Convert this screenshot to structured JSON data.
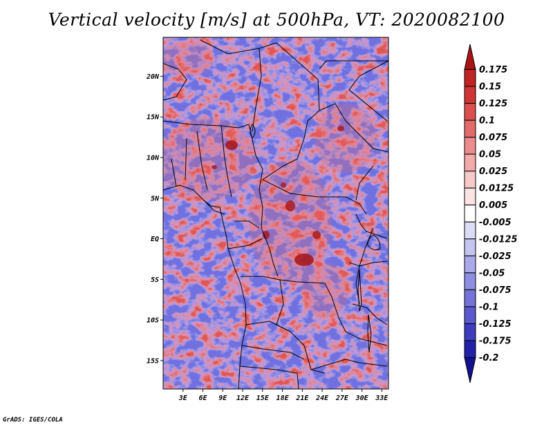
{
  "title": "Vertical velocity [m/s] at 500hPa, VT: 2020082100",
  "credit": "GrADS: IGES/COLA",
  "map": {
    "lat_labels": [
      "20N",
      "15N",
      "10N",
      "5N",
      "EQ",
      "5S",
      "10S",
      "15S"
    ],
    "lon_labels": [
      "3E",
      "6E",
      "9E",
      "12E",
      "15E",
      "18E",
      "21E",
      "24E",
      "27E",
      "30E",
      "33E"
    ],
    "lat_range": [
      -18.5,
      24.8
    ],
    "lon_range": [
      0,
      34
    ]
  },
  "colorbar": {
    "labels": [
      "0.175",
      "0.15",
      "0.125",
      "0.1",
      "0.075",
      "0.05",
      "0.025",
      "0.0125",
      "0.005",
      "-0.005",
      "-0.0125",
      "-0.025",
      "-0.05",
      "-0.075",
      "-0.1",
      "-0.125",
      "-0.175",
      "-0.2"
    ],
    "colors": [
      "#a81414",
      "#c02424",
      "#cf3535",
      "#db4f4f",
      "#e46b6b",
      "#ec8c8c",
      "#f2aaaa",
      "#f7c9c9",
      "#fbe4e4",
      "#ffffff",
      "#dcdcf6",
      "#c5c5f0",
      "#aaaaea",
      "#8f8fe2",
      "#7474d8",
      "#5a5ace",
      "#3d3dbe",
      "#2222a8",
      "#12128f"
    ]
  }
}
